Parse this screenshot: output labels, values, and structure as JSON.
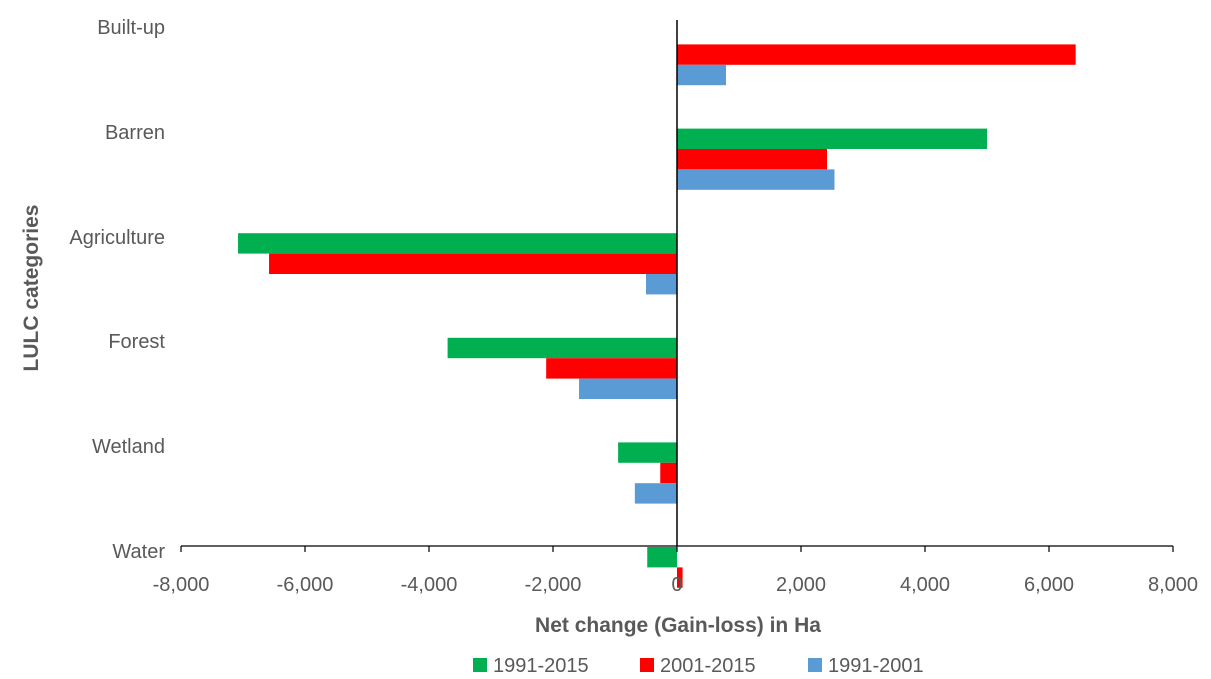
{
  "chart_data": {
    "type": "bar",
    "orientation": "horizontal",
    "categories": [
      "Built-up",
      "Barren",
      "Agriculture",
      "Forest",
      "Wetland",
      "Water"
    ],
    "series": [
      {
        "name": "1991-2015",
        "color": "#00B050",
        "values": [
          null,
          5000,
          -7080,
          -3700,
          -950,
          -480
        ]
      },
      {
        "name": "2001-2015",
        "color": "#FF0000",
        "values": [
          6430,
          2420,
          -6580,
          -2110,
          -270,
          90
        ]
      },
      {
        "name": "1991-2001",
        "color": "#5B9BD5",
        "values": [
          790,
          2540,
          -500,
          -1580,
          -680,
          null
        ]
      }
    ],
    "xlim": [
      -8000,
      8000
    ],
    "xticks": [
      -8000,
      -6000,
      -4000,
      -2000,
      0,
      2000,
      4000,
      6000,
      8000
    ],
    "xtick_labels": [
      "-8,000",
      "-6,000",
      "-4,000",
      "-2,000",
      "0",
      "2,000",
      "4,000",
      "6,000",
      "8,000"
    ],
    "xlabel": "Net change (Gain-loss) in Ha",
    "ylabel": "LULC categories",
    "legend_position": "bottom",
    "grid": false
  }
}
